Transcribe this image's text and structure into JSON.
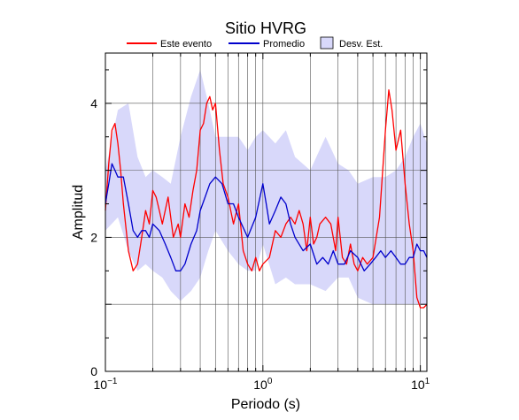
{
  "chart_data": {
    "type": "line",
    "title": "Sitio HVRG",
    "xlabel": "Periodo (s)",
    "ylabel": "Amplitud",
    "xscale": "log",
    "xlim": [
      0.1,
      11
    ],
    "ylim": [
      0,
      4.75
    ],
    "grid": true,
    "legend_position": "top",
    "x_ticks": [
      {
        "value": 0.1,
        "base": "10",
        "exp": "−1"
      },
      {
        "value": 1,
        "base": "10",
        "exp": "0"
      },
      {
        "value": 10,
        "base": "10",
        "exp": "1"
      }
    ],
    "y_ticks": [
      {
        "value": 0,
        "label": "0"
      },
      {
        "value": 2,
        "label": "2"
      },
      {
        "value": 4,
        "label": "4"
      }
    ],
    "legend": {
      "este_evento": "Este evento",
      "promedio": "Promedio",
      "desv_est": "Desv. Est."
    },
    "colors": {
      "este_evento": "#ff0000",
      "promedio": "#0000cc",
      "desv_est": "#d8d8fa"
    },
    "series": [
      {
        "name": "Este evento",
        "x": [
          0.1,
          0.105,
          0.11,
          0.115,
          0.12,
          0.125,
          0.13,
          0.14,
          0.15,
          0.16,
          0.17,
          0.18,
          0.19,
          0.2,
          0.21,
          0.22,
          0.23,
          0.25,
          0.27,
          0.29,
          0.3,
          0.32,
          0.34,
          0.36,
          0.38,
          0.4,
          0.42,
          0.44,
          0.46,
          0.48,
          0.5,
          0.53,
          0.56,
          0.6,
          0.65,
          0.7,
          0.75,
          0.8,
          0.85,
          0.9,
          0.95,
          1.0,
          1.1,
          1.2,
          1.3,
          1.4,
          1.5,
          1.6,
          1.7,
          1.8,
          1.9,
          2.0,
          2.1,
          2.2,
          2.3,
          2.5,
          2.7,
          2.9,
          3.0,
          3.2,
          3.4,
          3.6,
          3.8,
          4.0,
          4.3,
          4.6,
          5.0,
          5.5,
          6.0,
          6.3,
          6.6,
          7.0,
          7.5,
          8.0,
          8.5,
          9.0,
          9.5,
          10.0,
          10.5,
          11.0
        ],
        "y": [
          2.4,
          3.1,
          3.6,
          3.7,
          3.4,
          3.0,
          2.5,
          1.8,
          1.5,
          1.6,
          2.0,
          2.4,
          2.2,
          2.7,
          2.6,
          2.4,
          2.2,
          2.6,
          2.0,
          2.2,
          2.0,
          2.5,
          2.3,
          2.7,
          3.0,
          3.6,
          3.7,
          4.0,
          4.1,
          3.9,
          4.0,
          3.3,
          2.8,
          2.6,
          2.2,
          2.5,
          1.8,
          1.6,
          1.5,
          1.7,
          1.5,
          1.6,
          1.7,
          2.1,
          2.0,
          2.2,
          2.3,
          2.2,
          2.4,
          2.2,
          1.8,
          2.3,
          1.9,
          2.0,
          2.2,
          2.3,
          2.2,
          1.8,
          2.3,
          1.7,
          1.6,
          1.9,
          1.6,
          1.5,
          1.7,
          1.6,
          1.7,
          2.3,
          3.6,
          4.2,
          3.9,
          3.3,
          3.6,
          2.8,
          2.2,
          1.8,
          1.1,
          0.95,
          0.95,
          1.0
        ]
      },
      {
        "name": "Promedio",
        "x": [
          0.1,
          0.105,
          0.11,
          0.115,
          0.12,
          0.13,
          0.14,
          0.15,
          0.16,
          0.17,
          0.18,
          0.19,
          0.2,
          0.22,
          0.24,
          0.26,
          0.28,
          0.3,
          0.32,
          0.35,
          0.38,
          0.4,
          0.43,
          0.46,
          0.5,
          0.55,
          0.6,
          0.65,
          0.7,
          0.8,
          0.9,
          1.0,
          1.05,
          1.1,
          1.2,
          1.3,
          1.4,
          1.5,
          1.6,
          1.8,
          2.0,
          2.2,
          2.4,
          2.6,
          2.8,
          3.0,
          3.3,
          3.6,
          4.0,
          4.4,
          4.8,
          5.2,
          5.6,
          6.0,
          6.5,
          7.0,
          7.5,
          8.0,
          8.5,
          9.0,
          9.5,
          10.0,
          10.5,
          11.0
        ],
        "y": [
          2.5,
          2.8,
          3.1,
          3.0,
          2.9,
          2.9,
          2.5,
          2.1,
          2.0,
          2.1,
          2.1,
          2.0,
          2.2,
          2.1,
          1.9,
          1.7,
          1.5,
          1.5,
          1.6,
          1.9,
          2.1,
          2.4,
          2.6,
          2.8,
          2.9,
          2.8,
          2.5,
          2.5,
          2.3,
          2.0,
          2.3,
          2.8,
          2.5,
          2.2,
          2.4,
          2.6,
          2.5,
          2.2,
          2.0,
          1.8,
          1.9,
          1.6,
          1.7,
          1.6,
          1.8,
          1.6,
          1.6,
          1.8,
          1.7,
          1.5,
          1.6,
          1.7,
          1.8,
          1.7,
          1.8,
          1.7,
          1.6,
          1.6,
          1.7,
          1.7,
          1.9,
          1.8,
          1.8,
          1.7
        ]
      }
    ],
    "band": {
      "name": "Desv. Est.",
      "x": [
        0.1,
        0.12,
        0.14,
        0.16,
        0.18,
        0.2,
        0.23,
        0.26,
        0.3,
        0.35,
        0.4,
        0.45,
        0.5,
        0.6,
        0.7,
        0.8,
        0.9,
        1.0,
        1.2,
        1.4,
        1.6,
        2.0,
        2.5,
        3.0,
        3.5,
        4.0,
        5.0,
        6.0,
        7.0,
        8.0,
        9.0,
        10.0,
        11.0
      ],
      "upper": [
        3.0,
        3.9,
        4.0,
        3.2,
        2.9,
        3.0,
        2.9,
        2.8,
        3.5,
        4.1,
        4.5,
        4.0,
        3.5,
        3.5,
        3.5,
        3.3,
        3.5,
        3.6,
        3.4,
        3.6,
        3.2,
        3.0,
        3.5,
        3.1,
        3.0,
        2.8,
        2.9,
        2.9,
        3.0,
        3.2,
        3.5,
        3.7,
        3.4
      ],
      "lower": [
        2.1,
        2.3,
        1.8,
        1.5,
        1.6,
        1.5,
        1.4,
        1.2,
        1.05,
        1.2,
        1.4,
        1.8,
        2.1,
        1.8,
        1.6,
        1.5,
        1.5,
        1.9,
        1.3,
        1.4,
        1.3,
        1.3,
        1.2,
        1.4,
        1.4,
        1.1,
        1.0,
        1.0,
        1.0,
        1.0,
        1.0,
        1.0,
        1.0
      ]
    }
  }
}
